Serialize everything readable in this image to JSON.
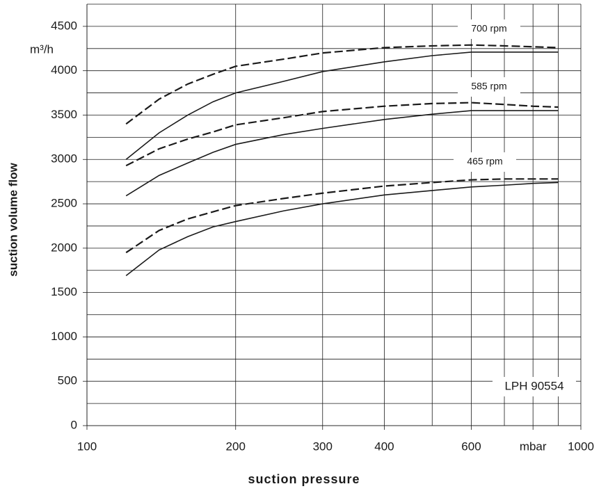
{
  "chart_data": {
    "type": "line",
    "x_label": "suction pressure",
    "y_label": "suction volume flow",
    "y_unit": "m³/h",
    "annotations": [
      "700 rpm",
      "585 rpm",
      "465 rpm",
      "LPH 90554"
    ],
    "x": [
      120,
      140,
      160,
      180,
      200,
      250,
      300,
      400,
      500,
      600,
      700,
      800,
      900
    ],
    "series": [
      {
        "color": "#1a1a1a",
        "dashed": true,
        "values": [
          3400,
          3680,
          3850,
          3960,
          4050,
          4130,
          4200,
          4260,
          4280,
          4290,
          4280,
          4270,
          4260
        ]
      },
      {
        "color": "#1a1a1a",
        "dashed": false,
        "values": [
          3000,
          3300,
          3500,
          3650,
          3750,
          3880,
          3990,
          4100,
          4170,
          4210,
          4210,
          4210,
          4210
        ]
      },
      {
        "color": "#1a1a1a",
        "dashed": true,
        "values": [
          2930,
          3120,
          3230,
          3310,
          3390,
          3470,
          3540,
          3600,
          3630,
          3640,
          3620,
          3600,
          3590
        ]
      },
      {
        "color": "#1a1a1a",
        "dashed": false,
        "values": [
          2590,
          2820,
          2960,
          3080,
          3170,
          3280,
          3350,
          3450,
          3510,
          3550,
          3550,
          3550,
          3550
        ]
      },
      {
        "color": "#1a1a1a",
        "dashed": true,
        "values": [
          1950,
          2200,
          2330,
          2410,
          2480,
          2560,
          2620,
          2700,
          2740,
          2770,
          2780,
          2780,
          2780
        ]
      },
      {
        "color": "#1a1a1a",
        "dashed": false,
        "values": [
          1690,
          1980,
          2130,
          2240,
          2300,
          2420,
          2500,
          2600,
          2650,
          2690,
          2710,
          2730,
          2740
        ]
      }
    ],
    "x_log": true,
    "xlim": [
      100,
      1000
    ],
    "xticks": [
      100,
      200,
      300,
      400,
      600,
      {
        "value": 800,
        "label": "mbar"
      },
      1000
    ],
    "x_minor_ticks": [
      500,
      700,
      900
    ],
    "ylim": [
      0,
      4750
    ],
    "yticks": [
      0,
      500,
      1000,
      1500,
      2000,
      2500,
      3000,
      3500,
      4000,
      4500
    ],
    "y_minor_ticks": [
      250,
      750,
      1250,
      1750,
      2250,
      2750,
      3250,
      3750,
      4250,
      4750
    ],
    "grid": true
  }
}
